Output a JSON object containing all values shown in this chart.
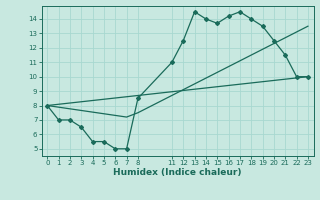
{
  "xlabel": "Humidex (Indice chaleur)",
  "bg_color": "#c8e8e0",
  "grid_color": "#a8d8d0",
  "line_color": "#1a6b5a",
  "xlim": [
    -0.5,
    23.5
  ],
  "ylim": [
    4.5,
    14.9
  ],
  "xticks": [
    0,
    1,
    2,
    3,
    4,
    5,
    6,
    7,
    8,
    11,
    12,
    13,
    14,
    15,
    16,
    17,
    18,
    19,
    20,
    21,
    22,
    23
  ],
  "yticks": [
    5,
    6,
    7,
    8,
    9,
    10,
    11,
    12,
    13,
    14
  ],
  "line1_x": [
    0,
    1,
    2,
    3,
    4,
    5,
    6,
    7,
    8,
    11,
    12,
    13,
    14,
    15,
    16,
    17,
    18,
    19,
    20,
    21,
    22,
    23
  ],
  "line1_y": [
    8.0,
    7.0,
    7.0,
    6.5,
    5.5,
    5.5,
    5.0,
    5.0,
    8.5,
    11.0,
    12.5,
    14.5,
    14.0,
    13.7,
    14.2,
    14.5,
    14.0,
    13.5,
    12.5,
    11.5,
    10.0,
    10.0
  ],
  "line2_x": [
    0,
    23
  ],
  "line2_y": [
    8.0,
    10.0
  ],
  "line3_x": [
    0,
    7,
    8,
    23
  ],
  "line3_y": [
    8.0,
    7.2,
    7.5,
    13.5
  ],
  "figsize": [
    3.2,
    2.0
  ],
  "dpi": 100
}
